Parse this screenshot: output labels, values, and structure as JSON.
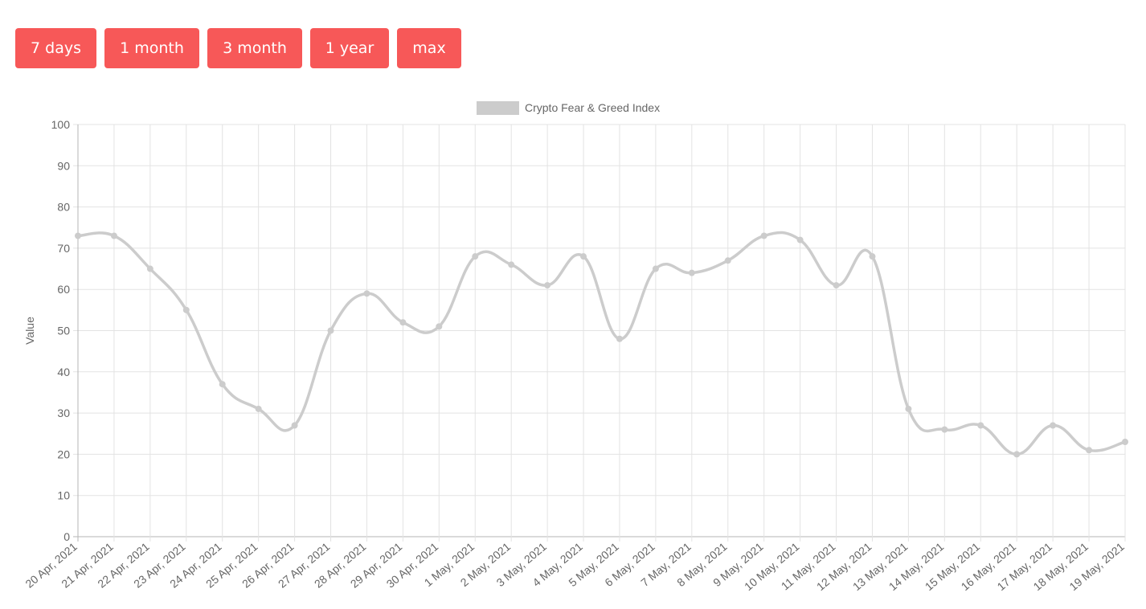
{
  "range_buttons": [
    "7 days",
    "1 month",
    "3 month",
    "1 year",
    "max"
  ],
  "chart_data": {
    "type": "line",
    "legend": {
      "label": "Crypto Fear & Greed Index",
      "position": "top",
      "swatch_color": "#cccccc"
    },
    "ylabel": "Value",
    "xlabel": "",
    "ylim": [
      0,
      100
    ],
    "y_ticks": [
      0,
      10,
      20,
      30,
      40,
      50,
      60,
      70,
      80,
      90,
      100
    ],
    "grid": true,
    "line_color": "#cccccc",
    "categories": [
      "20 Apr, 2021",
      "21 Apr, 2021",
      "22 Apr, 2021",
      "23 Apr, 2021",
      "24 Apr, 2021",
      "25 Apr, 2021",
      "26 Apr, 2021",
      "27 Apr, 2021",
      "28 Apr, 2021",
      "29 Apr, 2021",
      "30 Apr, 2021",
      "1 May, 2021",
      "2 May, 2021",
      "3 May, 2021",
      "4 May, 2021",
      "5 May, 2021",
      "6 May, 2021",
      "7 May, 2021",
      "8 May, 2021",
      "9 May, 2021",
      "10 May, 2021",
      "11 May, 2021",
      "12 May, 2021",
      "13 May, 2021",
      "14 May, 2021",
      "15 May, 2021",
      "16 May, 2021",
      "17 May, 2021",
      "18 May, 2021",
      "19 May, 2021"
    ],
    "series": [
      {
        "name": "Crypto Fear & Greed Index",
        "values": [
          73,
          73,
          65,
          55,
          37,
          31,
          27,
          50,
          59,
          52,
          51,
          68,
          66,
          61,
          68,
          48,
          65,
          64,
          67,
          73,
          72,
          61,
          68,
          31,
          26,
          27,
          20,
          27,
          21,
          23
        ]
      }
    ]
  }
}
